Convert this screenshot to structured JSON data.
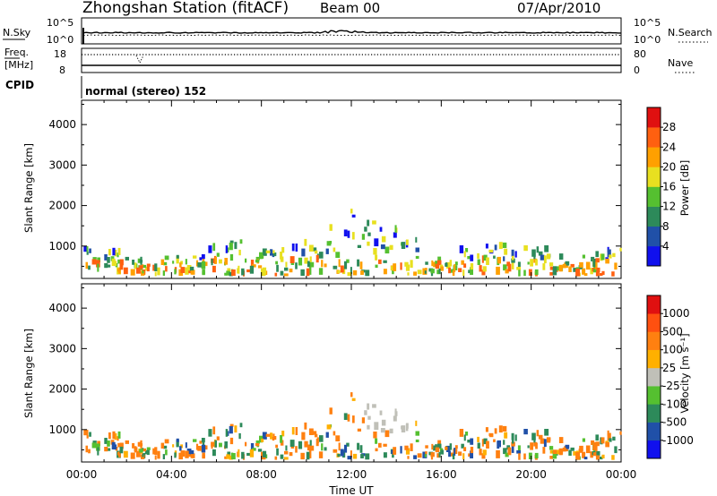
{
  "header": {
    "title": "Zhongshan Station (fitACF)",
    "beam": "Beam 00",
    "date": "07/Apr/2010"
  },
  "summary_panels": {
    "nsky_label": "N.Sky",
    "nsearch_label": "N.Search",
    "freq_label": "Freq.",
    "freq_unit": "[MHz]",
    "nave_label": "Nave",
    "cpid_label": "CPID",
    "cpid_text": "normal (stereo) 152",
    "noise_ticks": [
      "10^5",
      "10^0"
    ],
    "noise_right_ticks": [
      "10^5",
      "10^0"
    ],
    "freq_ticks": [
      "18",
      "8"
    ],
    "nave_ticks": [
      "80",
      "0"
    ]
  },
  "chart_data": [
    {
      "type": "heatmap",
      "name": "power-panel",
      "ylabel": "Slant Range [km]",
      "y_ticks": [
        1000,
        2000,
        3000,
        4000
      ],
      "ylim": [
        200,
        4600
      ],
      "colorbar_label": "Power [dB]",
      "colorbar_ticks": [
        "4",
        "8",
        "12",
        "16",
        "20",
        "24",
        "28"
      ],
      "colorbar_colors": [
        "#1010ee",
        "#2050a8",
        "#2d8a5a",
        "#55c030",
        "#e8e020",
        "#ffa000",
        "#ff6010",
        "#e01010"
      ]
    },
    {
      "type": "heatmap",
      "name": "velocity-panel",
      "ylabel": "Slant Range [km]",
      "y_ticks": [
        1000,
        2000,
        3000,
        4000
      ],
      "ylim": [
        200,
        4600
      ],
      "xlabel": "Time UT",
      "x_ticks": [
        "00:00",
        "04:00",
        "08:00",
        "12:00",
        "16:00",
        "20:00",
        "00:00"
      ],
      "colorbar_label": "Velocity [m s⁻¹]",
      "colorbar_ticks": [
        "1000",
        "500",
        "100",
        "25",
        "-25",
        "-100",
        "-500",
        "-1000"
      ],
      "colorbar_colors": [
        "#1010ee",
        "#2050a8",
        "#2d8a5a",
        "#55c030",
        "#c0c0b8",
        "#ffb000",
        "#ff8010",
        "#ff5010",
        "#e01010"
      ]
    }
  ]
}
